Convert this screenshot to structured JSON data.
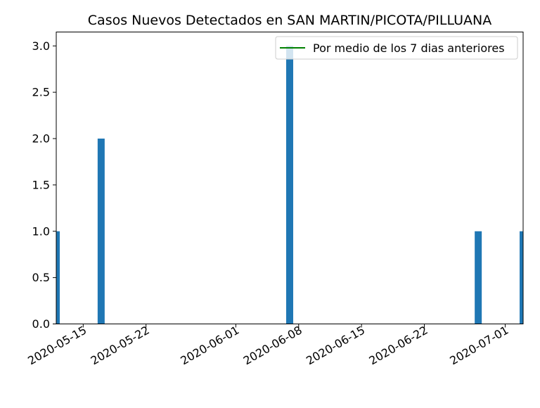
{
  "chart_data": {
    "type": "bar",
    "title": "Casos Nuevos Detectados en SAN MARTIN/PICOTA/PILLUANA",
    "xlabel": "",
    "ylabel": "",
    "x_type": "date",
    "xlim": [
      "2020-05-12",
      "2020-07-03"
    ],
    "ylim": [
      0,
      3.15
    ],
    "x_ticks": [
      "2020-05-15",
      "2020-05-22",
      "2020-06-01",
      "2020-06-08",
      "2020-06-15",
      "2020-06-22",
      "2020-07-01"
    ],
    "y_ticks": [
      "0.0",
      "0.5",
      "1.0",
      "1.5",
      "2.0",
      "2.5",
      "3.0"
    ],
    "series": [
      {
        "values": [
          {
            "x": "2020-05-12",
            "y": 1
          },
          {
            "x": "2020-05-17",
            "y": 2
          },
          {
            "x": "2020-06-07",
            "y": 3
          },
          {
            "x": "2020-06-28",
            "y": 1
          },
          {
            "x": "2020-07-03",
            "y": 1
          }
        ],
        "color": "#1f77b4"
      },
      {
        "name": "Por medio de los 7 dias anteriores",
        "type": "line",
        "color": "#008000",
        "values": []
      }
    ],
    "legend": {
      "position": "top-right",
      "entries": [
        "Por medio de los 7 dias anteriores"
      ]
    },
    "grid": false
  }
}
